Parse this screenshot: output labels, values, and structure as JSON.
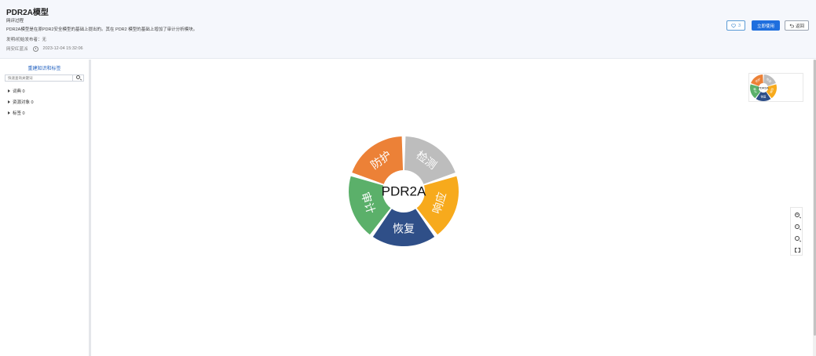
{
  "header": {
    "title": "PDR2A模型",
    "subtitle": "网评过程",
    "description": "PDR2A模型是在原PDR2安全模型的基础上提出的。其在 PDR2 模型的基础上增加了审计分析模块。",
    "author": "发明/初始发布者：无",
    "org": "网安红蓝派",
    "time": "2023-12-04 15:32:06",
    "like_count": "3",
    "use_label": "立即使用",
    "back_label": "返回"
  },
  "sidebar": {
    "title": "重建知识和标签",
    "search_placeholder": "快速查询关键词",
    "items": [
      {
        "label": "词典 0"
      },
      {
        "label": "资源对象 0"
      },
      {
        "label": "标签 0"
      }
    ]
  },
  "diagram": {
    "center_label": "PDR2A",
    "segments": [
      {
        "label": "检测",
        "color": "#bdbdbd"
      },
      {
        "label": "响应",
        "color": "#f7aa1c"
      },
      {
        "label": "恢复",
        "color": "#2f4f88"
      },
      {
        "label": "审计",
        "color": "#5bb06a"
      },
      {
        "label": "防护",
        "color": "#ec8137"
      }
    ]
  },
  "icons": {
    "like": "heart-icon",
    "back": "undo-icon",
    "zoom_in": "zoom-in-icon",
    "zoom_out": "zoom-out-icon",
    "reset": "zoom-reset-icon",
    "fit": "fit-screen-icon"
  }
}
